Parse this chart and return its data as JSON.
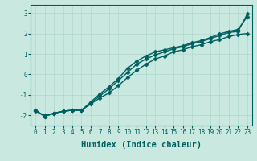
{
  "xlabel": "Humidex (Indice chaleur)",
  "bg_color": "#c8e8e0",
  "line_color": "#006060",
  "grid_color": "#b0d8d0",
  "xlim": [
    -0.5,
    23.5
  ],
  "ylim": [
    -2.5,
    3.4
  ],
  "yticks": [
    -2,
    -1,
    0,
    1,
    2,
    3
  ],
  "xticks": [
    0,
    1,
    2,
    3,
    4,
    5,
    6,
    7,
    8,
    9,
    10,
    11,
    12,
    13,
    14,
    15,
    16,
    17,
    18,
    19,
    20,
    21,
    22,
    23
  ],
  "line1_x": [
    0,
    1,
    2,
    3,
    4,
    5,
    6,
    7,
    8,
    9,
    10,
    11,
    12,
    13,
    14,
    15,
    16,
    17,
    18,
    19,
    20,
    21,
    22,
    23
  ],
  "line1_y": [
    -1.8,
    -2.0,
    -1.9,
    -1.8,
    -1.75,
    -1.75,
    -1.45,
    -1.15,
    -0.9,
    -0.55,
    -0.15,
    0.2,
    0.5,
    0.75,
    0.9,
    1.1,
    1.2,
    1.35,
    1.45,
    1.6,
    1.7,
    1.85,
    1.95,
    2.0
  ],
  "line2_x": [
    0,
    1,
    2,
    3,
    4,
    5,
    6,
    7,
    8,
    9,
    10,
    11,
    12,
    13,
    14,
    15,
    16,
    17,
    18,
    19,
    20,
    21,
    22,
    23
  ],
  "line2_y": [
    -1.75,
    -2.05,
    -1.9,
    -1.8,
    -1.75,
    -1.75,
    -1.4,
    -1.05,
    -0.7,
    -0.3,
    0.1,
    0.5,
    0.75,
    0.95,
    1.1,
    1.25,
    1.35,
    1.5,
    1.6,
    1.75,
    1.9,
    2.05,
    2.1,
    2.95
  ],
  "line3_x": [
    0,
    1,
    2,
    3,
    4,
    5,
    6,
    7,
    8,
    9,
    10,
    11,
    12,
    13,
    14,
    15,
    16,
    17,
    18,
    19,
    20,
    21,
    22,
    23
  ],
  "line3_y": [
    -1.75,
    -2.05,
    -1.9,
    -1.8,
    -1.75,
    -1.75,
    -1.35,
    -0.95,
    -0.6,
    -0.2,
    0.3,
    0.65,
    0.9,
    1.1,
    1.2,
    1.3,
    1.4,
    1.55,
    1.65,
    1.8,
    1.98,
    2.1,
    2.2,
    2.82
  ],
  "marker": "D",
  "markersize": 2.5,
  "linewidth": 1.0,
  "tick_fontsize": 5.5,
  "xlabel_fontsize": 7.5
}
